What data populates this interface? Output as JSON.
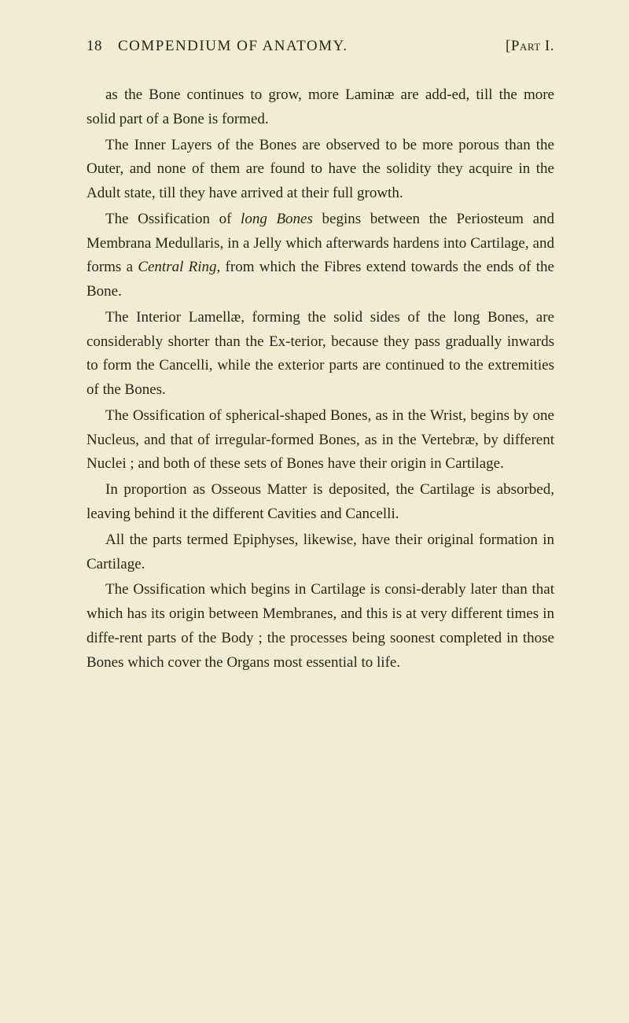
{
  "page": {
    "number": "18",
    "title": "COMPENDIUM OF ANATOMY.",
    "part": "[Part I."
  },
  "paragraphs": {
    "p1_a": "as the Bone continues to grow, more Laminæ are add-ed, till the more solid part of a Bone is formed.",
    "p2_a": "The Inner Layers of the Bones are observed to be more porous than the Outer, and none of them are found to have the solidity they acquire in the Adult state, till they have arrived at their full growth.",
    "p3_a": "The Ossification of ",
    "p3_i1": "long Bones",
    "p3_b": " begins between the Periosteum and Membrana Medullaris, in a Jelly which afterwards hardens into Cartilage, and forms a ",
    "p3_i2": "Central Ring",
    "p3_c": ", from which the Fibres extend towards the ends of the Bone.",
    "p4_a": "The Interior Lamellæ, forming the solid sides of the long Bones, are considerably shorter than the Ex-terior, because they pass gradually inwards to form the Cancelli, while the exterior parts are continued to the extremities of the Bones.",
    "p5_a": "The Ossification of spherical-shaped Bones, as in the Wrist, begins by one Nucleus, and that of irregular-formed Bones, as in the Vertebræ, by different Nuclei ; and both of these sets of Bones have their origin in Cartilage.",
    "p6_a": "In proportion as Osseous Matter is deposited, the Cartilage is absorbed, leaving behind it the different Cavities and Cancelli.",
    "p7_a": "All the parts termed Epiphyses, likewise, have their original formation in Cartilage.",
    "p8_a": "The Ossification which begins in Cartilage is consi-derably later than that which has its origin between Membranes, and this is at very different times in diffe-rent parts of the Body ; the processes being soonest completed in those Bones which cover the Organs most essential to life."
  },
  "colors": {
    "background": "#f2ecd4",
    "text": "#2a2618"
  },
  "typography": {
    "body_fontsize": 19,
    "line_height": 1.62,
    "font_family": "Georgia, Times New Roman, serif"
  }
}
